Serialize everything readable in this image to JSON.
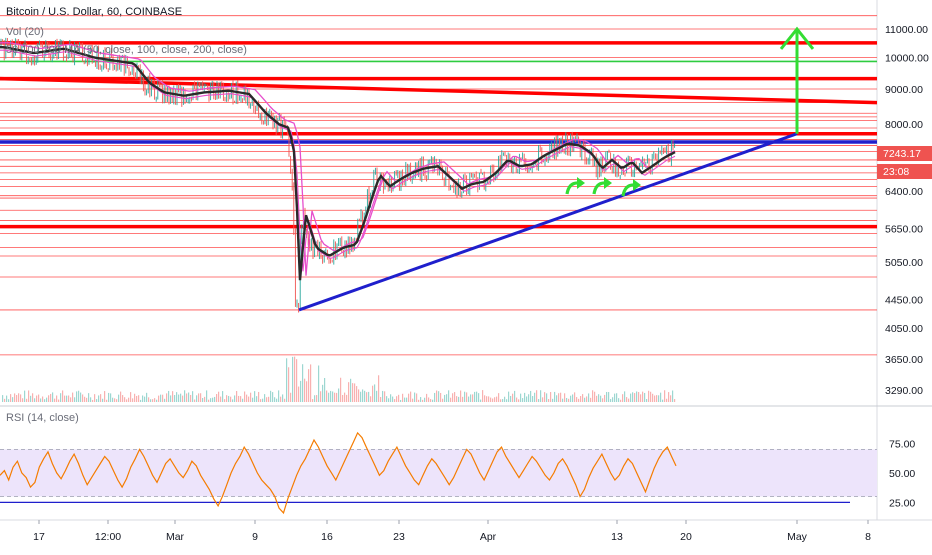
{
  "header": {
    "title": "Bitcoin / U.S. Dollar, 60, COINBASE",
    "vol_label": "Vol (20)",
    "ma_label": "50 100 200 MA (50, close, 100, close, 200, close)",
    "rsi_label": "RSI (14, close)"
  },
  "price_tags": {
    "last_price": "7243.17",
    "countdown": "23:08"
  },
  "colors": {
    "candle_up": "#26a69a",
    "candle_down": "#ef5350",
    "resistance_heavy": "#ff0000",
    "resistance_light": "#ff4d4d",
    "trendline": "#1f1fcc",
    "green_level": "#2ecc40",
    "arrow": "#33dd33",
    "ma_fast": "#e64ecc",
    "ma_slow": "#2a2a2a",
    "rsi_line": "#f57c00",
    "rsi_band": "#ede4fb",
    "last_price_tag": "#ef5350",
    "countdown_tag": "#ef5350"
  },
  "chart_data": [
    {
      "type": "candlestick",
      "title": "Bitcoin / U.S. Dollar, 60, COINBASE",
      "y_scale": "log",
      "x_tick_labels": [
        "17",
        "12:00",
        "Mar",
        "9",
        "16",
        "23",
        "Apr",
        "13",
        "20",
        "May",
        "8"
      ],
      "y_tick_labels": [
        "11000.00",
        "10000.00",
        "9000.00",
        "8000.00",
        "6400.00",
        "5650.00",
        "5050.00",
        "4450.00",
        "4050.00",
        "3650.00",
        "3290.00"
      ],
      "last_price": 7243.17,
      "price_path": [
        [
          0,
          10350
        ],
        [
          30,
          10150
        ],
        [
          60,
          10300
        ],
        [
          90,
          10000
        ],
        [
          110,
          9900
        ],
        [
          130,
          9800
        ],
        [
          145,
          9200
        ],
        [
          160,
          8900
        ],
        [
          180,
          8800
        ],
        [
          200,
          8900
        ],
        [
          225,
          8950
        ],
        [
          245,
          8850
        ],
        [
          262,
          8300
        ],
        [
          275,
          8000
        ],
        [
          285,
          7900
        ],
        [
          290,
          7300
        ],
        [
          296,
          4750
        ],
        [
          302,
          5900
        ],
        [
          312,
          5300
        ],
        [
          325,
          5150
        ],
        [
          340,
          5300
        ],
        [
          352,
          5350
        ],
        [
          360,
          5750
        ],
        [
          368,
          6250
        ],
        [
          376,
          6750
        ],
        [
          386,
          6500
        ],
        [
          396,
          6650
        ],
        [
          408,
          6800
        ],
        [
          420,
          6900
        ],
        [
          434,
          6950
        ],
        [
          446,
          6700
        ],
        [
          458,
          6450
        ],
        [
          468,
          6550
        ],
        [
          480,
          6600
        ],
        [
          492,
          6800
        ],
        [
          504,
          7100
        ],
        [
          516,
          6950
        ],
        [
          528,
          7000
        ],
        [
          540,
          7200
        ],
        [
          552,
          7350
        ],
        [
          564,
          7500
        ],
        [
          576,
          7450
        ],
        [
          588,
          7250
        ],
        [
          598,
          6900
        ],
        [
          608,
          7100
        ],
        [
          618,
          6900
        ],
        [
          628,
          7050
        ],
        [
          638,
          6800
        ],
        [
          648,
          6950
        ],
        [
          660,
          7150
        ],
        [
          672,
          7300
        ]
      ],
      "moving_averages": [
        "MA 50",
        "MA 100",
        "MA 200"
      ],
      "horizontal_levels_heavy": [
        10500,
        9320,
        7750,
        5680
      ],
      "horizontal_levels_light": [
        11500,
        11000,
        10000,
        9000,
        8600,
        8300,
        8200,
        8100,
        7900,
        7600,
        7450,
        7300,
        7100,
        6950,
        6800,
        6650,
        6500,
        6300,
        6250,
        6000,
        5800,
        5550,
        5300,
        5150,
        4800,
        4300,
        3700
      ],
      "green_level": 9870,
      "blue_level": 7540,
      "trendline": {
        "start": [
          299,
          4300
        ],
        "end": [
          797,
          7750
        ]
      },
      "resistance_diagonal": {
        "start": [
          0,
          9320
        ],
        "end": [
          877,
          8600
        ]
      },
      "target_arrow": {
        "x": 797,
        "from": 7750,
        "to": 11000
      },
      "bounce_markers": 3
    },
    {
      "type": "bar",
      "title": "Vol (20)",
      "note": "volume bars along the bottom of the price pane"
    },
    {
      "type": "line",
      "title": "RSI (14, close)",
      "y_tick_labels": [
        "75.00",
        "50.00",
        "25.00"
      ],
      "band": [
        30,
        70
      ],
      "reference_line": 25,
      "values": [
        48,
        52,
        44,
        55,
        60,
        50,
        46,
        38,
        42,
        55,
        62,
        68,
        58,
        50,
        45,
        52,
        60,
        66,
        58,
        48,
        40,
        46,
        52,
        58,
        64,
        60,
        52,
        44,
        38,
        45,
        55,
        62,
        70,
        64,
        56,
        48,
        42,
        50,
        58,
        62,
        56,
        50,
        46,
        52,
        60,
        56,
        48,
        42,
        36,
        28,
        22,
        30,
        40,
        50,
        58,
        64,
        72,
        66,
        58,
        50,
        44,
        40,
        36,
        30,
        20,
        16,
        28,
        38,
        48,
        56,
        62,
        70,
        78,
        72,
        64,
        56,
        50,
        44,
        52,
        60,
        68,
        76,
        84,
        80,
        72,
        64,
        56,
        48,
        52,
        60,
        66,
        72,
        64,
        56,
        50,
        44,
        40,
        48,
        56,
        62,
        58,
        52,
        46,
        40,
        46,
        54,
        62,
        70,
        66,
        58,
        50,
        44,
        52,
        60,
        68,
        72,
        64,
        58,
        52,
        46,
        52,
        58,
        64,
        60,
        54,
        48,
        44,
        50,
        58,
        62,
        56,
        48,
        40,
        30,
        36,
        46,
        54,
        60,
        66,
        58,
        50,
        44,
        48,
        56,
        62,
        58,
        50,
        42,
        34,
        44,
        54,
        62,
        68,
        72,
        64,
        56
      ]
    }
  ]
}
